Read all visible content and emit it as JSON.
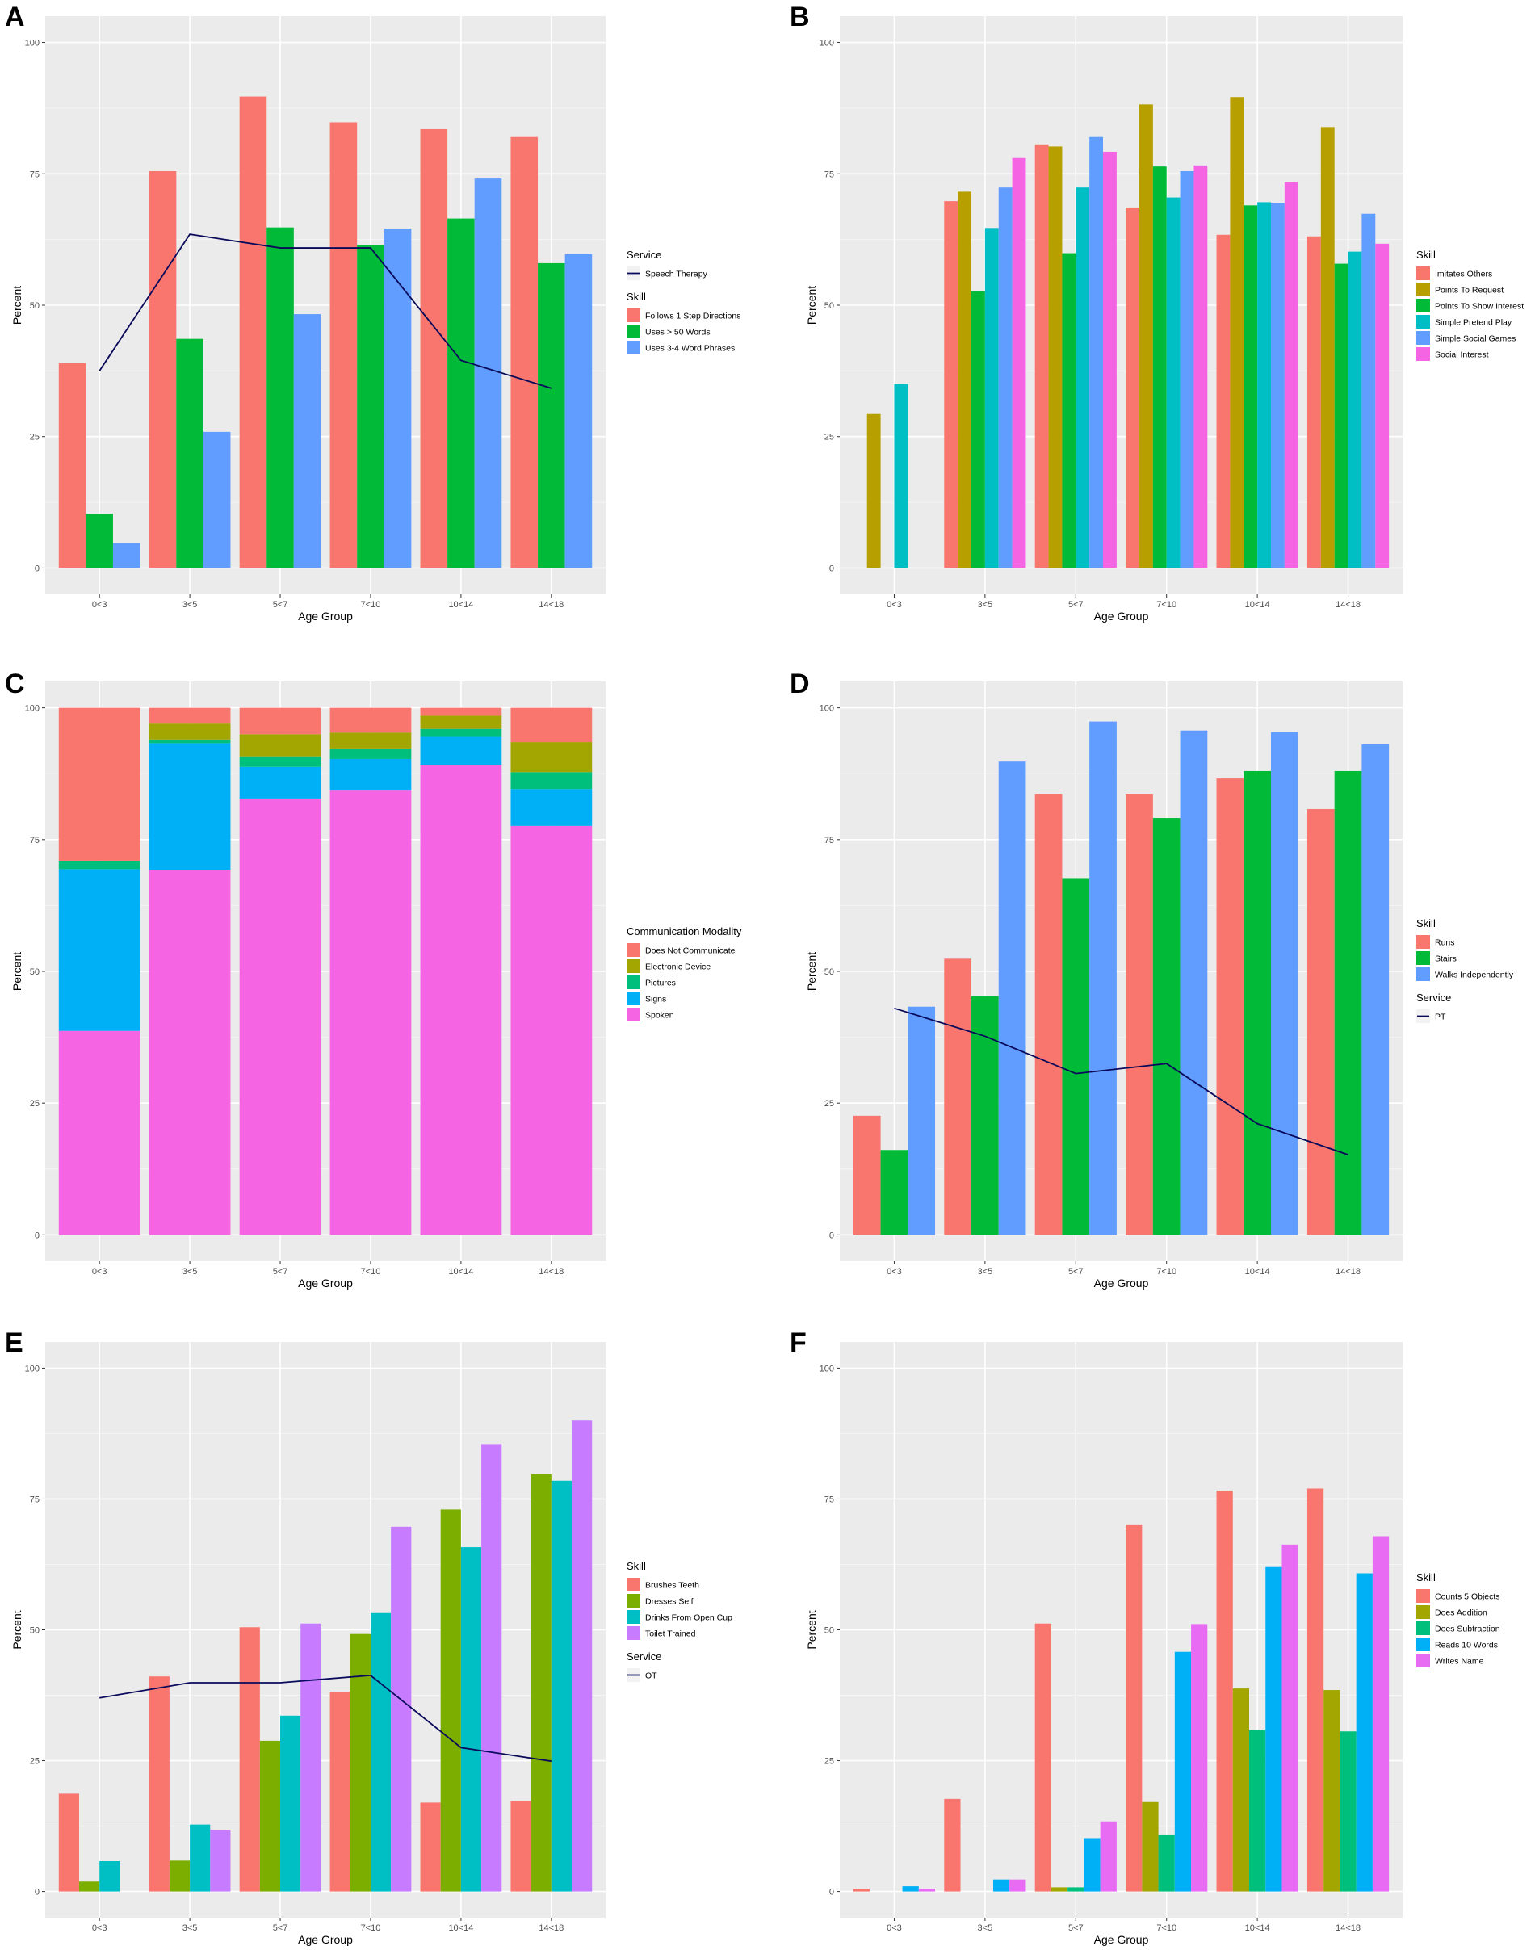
{
  "chart_data": [
    {
      "panel": "A",
      "type": "bar",
      "categories": [
        "0<3",
        "3<5",
        "5<7",
        "7<10",
        "10<14",
        "14<18"
      ],
      "series": [
        {
          "name": "Follows 1 Step Directions",
          "color": "#F8766D",
          "values": [
            39,
            75.5,
            89.7,
            84.8,
            83.5,
            82
          ]
        },
        {
          "name": "Uses > 50 Words",
          "color": "#00BA38",
          "values": [
            10.3,
            43.6,
            64.8,
            61.5,
            66.5,
            58
          ]
        },
        {
          "name": "Uses 3-4 Word Phrases",
          "color": "#619CFF",
          "values": [
            4.8,
            25.9,
            48.3,
            64.6,
            74.1,
            59.7
          ]
        }
      ],
      "line": {
        "name": "Speech Therapy",
        "color": "#0A0A5A",
        "values": [
          37.5,
          63.5,
          60.9,
          60.9,
          39.5,
          34.2
        ]
      },
      "legend": [
        {
          "title": "Service",
          "kind": "line",
          "items": [
            {
              "label": "Speech Therapy",
              "color": "#0A0A5A"
            }
          ]
        },
        {
          "title": "Skill",
          "kind": "box",
          "items": [
            {
              "label": "Follows 1 Step Directions",
              "color": "#F8766D"
            },
            {
              "label": "Uses > 50 Words",
              "color": "#00BA38"
            },
            {
              "label": "Uses 3-4 Word Phrases",
              "color": "#619CFF"
            }
          ]
        }
      ],
      "xlabel": "Age Group",
      "ylabel": "Percent",
      "ylim": [
        0,
        100
      ],
      "yticks": [
        0,
        25,
        50,
        75,
        100
      ]
    },
    {
      "panel": "B",
      "type": "bar",
      "categories": [
        "0<3",
        "3<5",
        "5<7",
        "7<10",
        "10<14",
        "14<18"
      ],
      "series": [
        {
          "name": "Imitates Others",
          "color": "#F8766D",
          "values": [
            null,
            69.8,
            80.6,
            68.6,
            63.4,
            63.1
          ]
        },
        {
          "name": "Points To Request",
          "color": "#B79F00",
          "values": [
            29.3,
            71.6,
            80.2,
            88.2,
            89.6,
            83.9
          ]
        },
        {
          "name": "Points To Show Interest",
          "color": "#00BA38",
          "values": [
            null,
            52.7,
            59.9,
            76.4,
            69,
            57.9
          ]
        },
        {
          "name": "Simple Pretend Play",
          "color": "#00BFC4",
          "values": [
            35,
            64.7,
            72.4,
            70.5,
            69.6,
            60.2
          ]
        },
        {
          "name": "Simple Social Games",
          "color": "#619CFF",
          "values": [
            null,
            72.4,
            82,
            75.5,
            69.5,
            67.4
          ]
        },
        {
          "name": "Social Interest",
          "color": "#F564E3",
          "values": [
            null,
            78,
            79.2,
            76.6,
            73.4,
            61.7
          ]
        }
      ],
      "legend": [
        {
          "title": "Skill",
          "kind": "box",
          "items": [
            {
              "label": "Imitates Others",
              "color": "#F8766D"
            },
            {
              "label": "Points To Request",
              "color": "#B79F00"
            },
            {
              "label": "Points To Show Interest",
              "color": "#00BA38"
            },
            {
              "label": "Simple Pretend Play",
              "color": "#00BFC4"
            },
            {
              "label": "Simple Social Games",
              "color": "#619CFF"
            },
            {
              "label": "Social Interest",
              "color": "#F564E3"
            }
          ]
        }
      ],
      "xlabel": "Age Group",
      "ylabel": "Percent",
      "ylim": [
        0,
        100
      ],
      "yticks": [
        0,
        25,
        50,
        75,
        100
      ]
    },
    {
      "panel": "C",
      "type": "stacked-bar",
      "categories": [
        "0<3",
        "3<5",
        "5<7",
        "7<10",
        "10<14",
        "14<18"
      ],
      "series": [
        {
          "name": "Spoken",
          "color": "#F564E3",
          "values": [
            38.7,
            69.3,
            82.8,
            84.3,
            89.2,
            77.6
          ]
        },
        {
          "name": "Signs",
          "color": "#00B0F6",
          "values": [
            30.7,
            24.0,
            6.0,
            6.0,
            5.3,
            7.0
          ]
        },
        {
          "name": "Pictures",
          "color": "#00BF7D",
          "values": [
            1.6,
            0.7,
            2.0,
            2.0,
            1.5,
            3.2
          ]
        },
        {
          "name": "Electronic Device",
          "color": "#A3A500",
          "values": [
            0,
            3.0,
            4.2,
            3.0,
            2.5,
            5.7
          ]
        },
        {
          "name": "Does Not Communicate",
          "color": "#F8766D",
          "values": [
            29.0,
            3.0,
            5.0,
            4.7,
            1.5,
            6.5
          ]
        }
      ],
      "legend": [
        {
          "title": "Communication Modality",
          "kind": "box",
          "items": [
            {
              "label": "Does Not Communicate",
              "color": "#F8766D"
            },
            {
              "label": "Electronic Device",
              "color": "#A3A500"
            },
            {
              "label": "Pictures",
              "color": "#00BF7D"
            },
            {
              "label": "Signs",
              "color": "#00B0F6"
            },
            {
              "label": "Spoken",
              "color": "#F564E3"
            }
          ]
        }
      ],
      "xlabel": "Age Group",
      "ylabel": "Percent",
      "ylim": [
        0,
        100
      ],
      "yticks": [
        0,
        25,
        50,
        75,
        100
      ]
    },
    {
      "panel": "D",
      "type": "bar",
      "categories": [
        "0<3",
        "3<5",
        "5<7",
        "7<10",
        "10<14",
        "14<18"
      ],
      "series": [
        {
          "name": "Runs",
          "color": "#F8766D",
          "values": [
            22.6,
            52.4,
            83.7,
            83.7,
            86.6,
            80.8
          ]
        },
        {
          "name": "Stairs",
          "color": "#00BA38",
          "values": [
            16.1,
            45.3,
            67.7,
            79.1,
            88,
            88
          ]
        },
        {
          "name": "Walks Independently",
          "color": "#619CFF",
          "values": [
            43.3,
            89.8,
            97.4,
            95.7,
            95.4,
            93.1
          ]
        }
      ],
      "line": {
        "name": "PT",
        "color": "#0A0A5A",
        "values": [
          43,
          37.7,
          30.6,
          32.5,
          21.1,
          15.2
        ]
      },
      "legend": [
        {
          "title": "Skill",
          "kind": "box",
          "items": [
            {
              "label": "Runs",
              "color": "#F8766D"
            },
            {
              "label": "Stairs",
              "color": "#00BA38"
            },
            {
              "label": "Walks Independently",
              "color": "#619CFF"
            }
          ]
        },
        {
          "title": "Service",
          "kind": "line",
          "items": [
            {
              "label": "PT",
              "color": "#0A0A5A"
            }
          ]
        }
      ],
      "xlabel": "Age Group",
      "ylabel": "Percent",
      "ylim": [
        0,
        100
      ],
      "yticks": [
        0,
        25,
        50,
        75,
        100
      ]
    },
    {
      "panel": "E",
      "type": "bar",
      "categories": [
        "0<3",
        "3<5",
        "5<7",
        "7<10",
        "10<14",
        "14<18"
      ],
      "series": [
        {
          "name": "Brushes Teeth",
          "color": "#F8766D",
          "values": [
            18.7,
            41.1,
            50.5,
            38.2,
            17,
            17.3
          ]
        },
        {
          "name": "Dresses Self",
          "color": "#7CAE00",
          "values": [
            1.9,
            5.9,
            28.8,
            49.2,
            73,
            79.7
          ]
        },
        {
          "name": "Drinks From Open Cup",
          "color": "#00BFC4",
          "values": [
            5.8,
            12.8,
            33.6,
            53.2,
            65.8,
            78.5
          ]
        },
        {
          "name": "Toilet Trained",
          "color": "#C77CFF",
          "values": [
            null,
            11.8,
            51.2,
            69.7,
            85.5,
            90
          ]
        }
      ],
      "line": {
        "name": "OT",
        "color": "#0A0A5A",
        "values": [
          37,
          39.9,
          39.9,
          41.3,
          27.5,
          24.9
        ]
      },
      "legend": [
        {
          "title": "Skill",
          "kind": "box",
          "items": [
            {
              "label": "Brushes Teeth",
              "color": "#F8766D"
            },
            {
              "label": "Dresses Self",
              "color": "#7CAE00"
            },
            {
              "label": "Drinks From Open Cup",
              "color": "#00BFC4"
            },
            {
              "label": "Toilet Trained",
              "color": "#C77CFF"
            }
          ]
        },
        {
          "title": "Service",
          "kind": "line",
          "items": [
            {
              "label": "OT",
              "color": "#0A0A5A"
            }
          ]
        }
      ],
      "xlabel": "Age Group",
      "ylabel": "Percent",
      "ylim": [
        0,
        100
      ],
      "yticks": [
        0,
        25,
        50,
        75,
        100
      ]
    },
    {
      "panel": "F",
      "type": "bar",
      "categories": [
        "0<3",
        "3<5",
        "5<7",
        "7<10",
        "10<14",
        "14<18"
      ],
      "series": [
        {
          "name": "Counts 5 Objects",
          "color": "#F8766D",
          "values": [
            0.5,
            17.7,
            51.2,
            70,
            76.6,
            77
          ]
        },
        {
          "name": "Does Addition",
          "color": "#A3A500",
          "values": [
            null,
            null,
            0.8,
            17.1,
            38.8,
            38.5
          ]
        },
        {
          "name": "Does Subtraction",
          "color": "#00BF7D",
          "values": [
            null,
            null,
            0.8,
            10.9,
            30.8,
            30.6
          ]
        },
        {
          "name": "Reads 10 Words",
          "color": "#00B0F6",
          "values": [
            1,
            2.3,
            10.2,
            45.8,
            62,
            60.8
          ]
        },
        {
          "name": "Writes Name",
          "color": "#E76BF3",
          "values": [
            0.5,
            2.3,
            13.4,
            51.1,
            66.3,
            67.9
          ]
        }
      ],
      "legend": [
        {
          "title": "Skill",
          "kind": "box",
          "items": [
            {
              "label": "Counts 5 Objects",
              "color": "#F8766D"
            },
            {
              "label": "Does Addition",
              "color": "#A3A500"
            },
            {
              "label": "Does Subtraction",
              "color": "#00BF7D"
            },
            {
              "label": "Reads 10 Words",
              "color": "#00B0F6"
            },
            {
              "label": "Writes Name",
              "color": "#E76BF3"
            }
          ]
        }
      ],
      "xlabel": "Age Group",
      "ylabel": "Percent",
      "ylim": [
        0,
        100
      ],
      "yticks": [
        0,
        25,
        50,
        75,
        100
      ]
    }
  ]
}
